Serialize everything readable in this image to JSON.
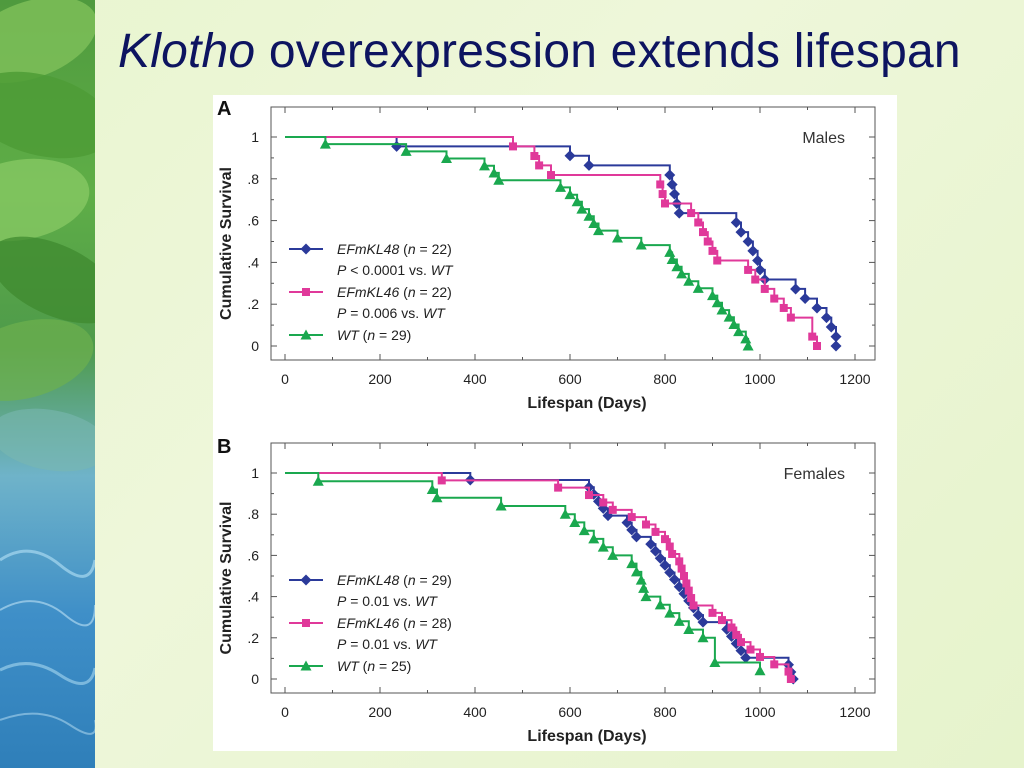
{
  "slide": {
    "title_italic": "Klotho",
    "title_rest": " overexpression extends lifespan"
  },
  "colors": {
    "title": "#0d1460",
    "EFmKL48": "#2b3a9a",
    "EFmKL46": "#e0399a",
    "WT": "#1aa84f"
  },
  "chart_data": [
    {
      "type": "line",
      "panel_label": "A",
      "group_label": "Males",
      "xlabel": "Lifespan (Days)",
      "ylabel": "Cumulative Survival",
      "xlim": [
        0,
        1200
      ],
      "ylim": [
        0,
        1
      ],
      "xticks": [
        "0",
        "200",
        "400",
        "600",
        "800",
        "1000",
        "1200"
      ],
      "yticks": [
        "0",
        ".2",
        ".4",
        ".6",
        ".8",
        "1"
      ],
      "legend_position": "center-left",
      "series": [
        {
          "name": "EFmKL48 (n = 22)",
          "stat": "P < 0.0001 vs. WT",
          "color": "#2b3a9a",
          "marker": "diamond",
          "x": [
            0,
            235,
            600,
            640,
            810,
            815,
            820,
            825,
            830,
            950,
            960,
            975,
            985,
            995,
            1000,
            1010,
            1075,
            1095,
            1120,
            1140,
            1150,
            1160,
            1160
          ],
          "y": [
            1,
            0.955,
            0.91,
            0.864,
            0.818,
            0.773,
            0.727,
            0.682,
            0.636,
            0.591,
            0.545,
            0.5,
            0.455,
            0.409,
            0.364,
            0.318,
            0.273,
            0.227,
            0.182,
            0.136,
            0.091,
            0.045,
            0
          ]
        },
        {
          "name": "EFmKL46 (n = 22)",
          "stat": "P = 0.006 vs. WT",
          "color": "#e0399a",
          "marker": "square",
          "x": [
            0,
            480,
            525,
            535,
            560,
            790,
            795,
            800,
            855,
            870,
            880,
            890,
            900,
            910,
            975,
            990,
            1010,
            1030,
            1050,
            1065,
            1110,
            1120
          ],
          "y": [
            1,
            0.955,
            0.909,
            0.864,
            0.818,
            0.773,
            0.727,
            0.682,
            0.636,
            0.591,
            0.545,
            0.5,
            0.455,
            0.409,
            0.364,
            0.318,
            0.273,
            0.227,
            0.182,
            0.136,
            0.045,
            0
          ]
        },
        {
          "name": "WT (n = 29)",
          "stat": "",
          "color": "#1aa84f",
          "marker": "triangle",
          "x": [
            0,
            85,
            255,
            340,
            420,
            440,
            450,
            580,
            600,
            615,
            625,
            640,
            650,
            660,
            700,
            750,
            810,
            815,
            825,
            835,
            850,
            870,
            900,
            910,
            920,
            935,
            945,
            955,
            970,
            975
          ],
          "y": [
            1,
            0.966,
            0.931,
            0.897,
            0.862,
            0.828,
            0.793,
            0.759,
            0.724,
            0.69,
            0.655,
            0.621,
            0.586,
            0.552,
            0.517,
            0.483,
            0.448,
            0.414,
            0.379,
            0.345,
            0.31,
            0.276,
            0.241,
            0.207,
            0.172,
            0.138,
            0.103,
            0.069,
            0.034,
            0
          ]
        }
      ]
    },
    {
      "type": "line",
      "panel_label": "B",
      "group_label": "Females",
      "xlabel": "Lifespan (Days)",
      "ylabel": "Cumulative Survival",
      "xlim": [
        0,
        1200
      ],
      "ylim": [
        0,
        1
      ],
      "xticks": [
        "0",
        "200",
        "400",
        "600",
        "800",
        "1000",
        "1200"
      ],
      "yticks": [
        "0",
        ".2",
        ".4",
        ".6",
        ".8",
        "1"
      ],
      "legend_position": "center-left",
      "series": [
        {
          "name": "EFmKL48 (n = 29)",
          "stat": "P = 0.01 vs. WT",
          "color": "#2b3a9a",
          "marker": "diamond",
          "x": [
            0,
            390,
            640,
            650,
            660,
            670,
            680,
            720,
            730,
            740,
            770,
            780,
            790,
            800,
            810,
            820,
            830,
            840,
            850,
            860,
            870,
            880,
            930,
            940,
            950,
            960,
            970,
            1060,
            1065,
            1070
          ],
          "y": [
            1,
            0.966,
            0.931,
            0.897,
            0.862,
            0.828,
            0.793,
            0.759,
            0.724,
            0.69,
            0.655,
            0.621,
            0.586,
            0.552,
            0.517,
            0.483,
            0.448,
            0.414,
            0.379,
            0.345,
            0.31,
            0.276,
            0.241,
            0.207,
            0.172,
            0.138,
            0.103,
            0.069,
            0.034,
            0
          ]
        },
        {
          "name": "EFmKL46 (n = 28)",
          "stat": "P = 0.01 vs. WT",
          "color": "#e0399a",
          "marker": "square",
          "x": [
            0,
            330,
            575,
            640,
            670,
            690,
            730,
            760,
            780,
            800,
            810,
            815,
            830,
            835,
            840,
            845,
            850,
            855,
            860,
            900,
            920,
            940,
            950,
            960,
            980,
            1000,
            1030,
            1060,
            1065
          ],
          "y": [
            1,
            0.964,
            0.929,
            0.893,
            0.857,
            0.821,
            0.786,
            0.75,
            0.714,
            0.679,
            0.643,
            0.607,
            0.571,
            0.536,
            0.5,
            0.464,
            0.429,
            0.393,
            0.357,
            0.321,
            0.286,
            0.25,
            0.214,
            0.179,
            0.143,
            0.107,
            0.071,
            0.036,
            0
          ]
        },
        {
          "name": "WT (n = 25)",
          "stat": "",
          "color": "#1aa84f",
          "marker": "triangle",
          "x": [
            0,
            70,
            310,
            320,
            455,
            590,
            610,
            630,
            650,
            670,
            690,
            730,
            740,
            750,
            755,
            760,
            790,
            810,
            830,
            850,
            880,
            905,
            1000
          ],
          "y": [
            1,
            0.96,
            0.92,
            0.88,
            0.84,
            0.8,
            0.76,
            0.72,
            0.68,
            0.64,
            0.6,
            0.56,
            0.52,
            0.48,
            0.44,
            0.4,
            0.36,
            0.32,
            0.28,
            0.24,
            0.2,
            0.08,
            0.04
          ]
        }
      ]
    }
  ]
}
